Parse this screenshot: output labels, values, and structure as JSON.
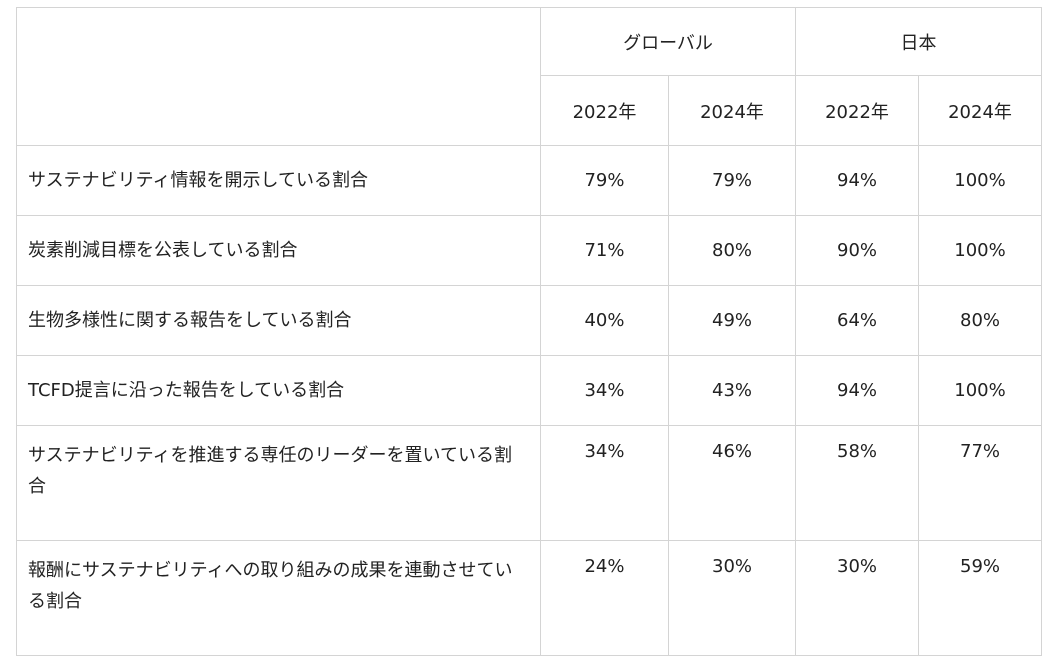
{
  "headers": {
    "global": "グローバル",
    "japan": "日本",
    "years": [
      "2022年",
      "2024年",
      "2022年",
      "2024年"
    ]
  },
  "rows": [
    {
      "label": "サステナビリティ情報を開示している割合",
      "values": [
        "79%",
        "79%",
        "94%",
        "100%"
      ]
    },
    {
      "label": "炭素削減目標を公表している割合",
      "values": [
        "71%",
        "80%",
        "90%",
        "100%"
      ]
    },
    {
      "label": "生物多様性に関する報告をしている割合",
      "values": [
        "40%",
        "49%",
        "64%",
        "80%"
      ]
    },
    {
      "label": "TCFD提言に沿った報告をしている割合",
      "values": [
        "34%",
        "43%",
        "94%",
        "100%"
      ]
    },
    {
      "label": "サステナビリティを推進する専任のリーダーを置いている割合",
      "values": [
        "34%",
        "46%",
        "58%",
        "77%"
      ]
    },
    {
      "label": "報酬にサステナビリティへの取り組みの成果を連動させている割合",
      "values": [
        "24%",
        "30%",
        "30%",
        "59%"
      ]
    }
  ]
}
